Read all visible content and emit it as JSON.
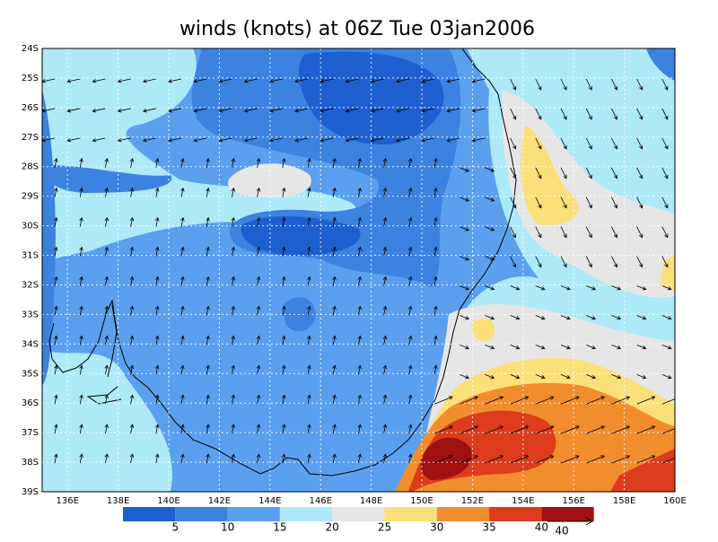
{
  "title": "winds (knots) at 06Z Tue 03jan2006",
  "lat_labels": [
    "24S",
    "25S",
    "26S",
    "27S",
    "28S",
    "29S",
    "30S",
    "31S",
    "32S",
    "33S",
    "34S",
    "35S",
    "36S",
    "37S",
    "38S",
    "39S"
  ],
  "lon_labels": [
    "136E",
    "138E",
    "140E",
    "142E",
    "144E",
    "146E",
    "148E",
    "150E",
    "152E",
    "154E",
    "156E",
    "158E",
    "160E"
  ],
  "colorbar": {
    "levels": [
      5,
      10,
      15,
      20,
      25,
      30,
      35,
      40
    ],
    "colors": [
      "#1e5fcf",
      "#3c82e1",
      "#5aa0ef",
      "#aee9f7",
      "#e6e6e6",
      "#fbe07a",
      "#f28d2e",
      "#dc3c1c",
      "#a01010"
    ]
  },
  "reference_vector": 40
}
